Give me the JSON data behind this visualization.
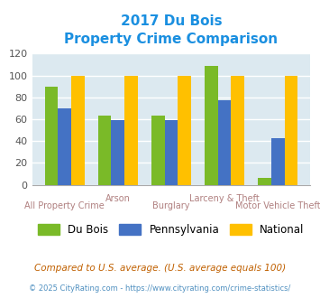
{
  "title_line1": "2017 Du Bois",
  "title_line2": "Property Crime Comparison",
  "categories": [
    "All Property Crime",
    "Arson",
    "Burglary",
    "Larceny & Theft",
    "Motor Vehicle Theft"
  ],
  "dubois": [
    90,
    63,
    63,
    109,
    6
  ],
  "pennsylvania": [
    70,
    59,
    59,
    77,
    43
  ],
  "national": [
    100,
    100,
    100,
    100,
    100
  ],
  "color_dubois": "#7aba28",
  "color_penn": "#4472c4",
  "color_national": "#ffc000",
  "ylim": [
    0,
    120
  ],
  "yticks": [
    0,
    20,
    40,
    60,
    80,
    100,
    120
  ],
  "bg_color": "#dce9f0",
  "title_color": "#1a8fe0",
  "xlabel_color": "#b08080",
  "footer_text": "Compared to U.S. average. (U.S. average equals 100)",
  "credit_text": "© 2025 CityRating.com - https://www.cityrating.com/crime-statistics/",
  "footer_color": "#c06000",
  "credit_color": "#5090c0",
  "legend_labels": [
    "Du Bois",
    "Pennsylvania",
    "National"
  ],
  "bar_width": 0.25,
  "grid_color": "#ffffff",
  "xlabels_top": [
    "",
    "Arson",
    "",
    "Larceny & Theft",
    ""
  ],
  "xlabels_bottom": [
    "All Property Crime",
    "",
    "Burglary",
    "",
    "Motor Vehicle Theft"
  ]
}
